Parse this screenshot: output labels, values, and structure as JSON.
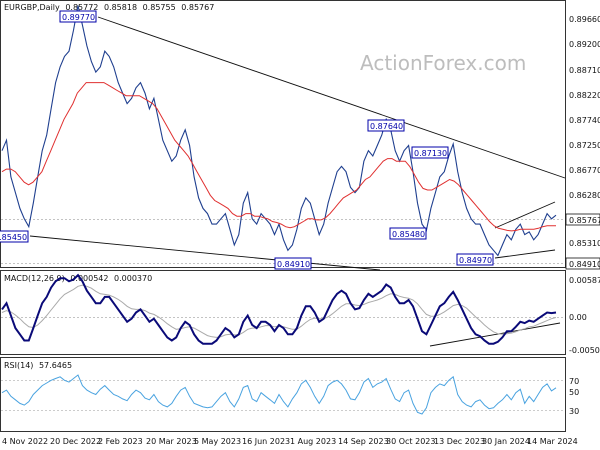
{
  "chart_data": [
    {
      "type": "line",
      "title": "EURGBP,Daily",
      "quote": [
        "0.85772",
        "0.85818",
        "0.85755",
        "0.85767"
      ],
      "watermark": "ActionForex.com",
      "y_range": [
        0.848,
        0.898
      ],
      "y_ticks": [
        "0.89660",
        "0.89200",
        "0.88710",
        "0.88220",
        "0.87740",
        "0.87250",
        "0.86770",
        "0.86280",
        "0.85767",
        "0.85310",
        "0.84910"
      ],
      "x_labels": [
        "4 Nov 2022",
        "20 Dec 2022",
        "2 Feb 2023",
        "20 Mar 2023",
        "5 May 2023",
        "16 Jun 2023",
        "1 Aug 2023",
        "14 Sep 2023",
        "30 Oct 2023",
        "13 Dec 2023",
        "30 Jan 2024",
        "14 Mar 2024"
      ],
      "price": [
        0.87,
        0.872,
        0.865,
        0.862,
        0.859,
        0.857,
        0.8555,
        0.86,
        0.865,
        0.87,
        0.873,
        0.878,
        0.883,
        0.886,
        0.888,
        0.889,
        0.893,
        0.8977,
        0.894,
        0.89,
        0.887,
        0.885,
        0.886,
        0.889,
        0.888,
        0.886,
        0.883,
        0.881,
        0.879,
        0.88,
        0.882,
        0.883,
        0.881,
        0.878,
        0.88,
        0.876,
        0.872,
        0.87,
        0.868,
        0.869,
        0.872,
        0.874,
        0.871,
        0.865,
        0.861,
        0.859,
        0.858,
        0.856,
        0.856,
        0.857,
        0.858,
        0.855,
        0.852,
        0.854,
        0.86,
        0.862,
        0.857,
        0.856,
        0.858,
        0.857,
        0.856,
        0.854,
        0.856,
        0.853,
        0.851,
        0.852,
        0.855,
        0.859,
        0.861,
        0.86,
        0.857,
        0.854,
        0.856,
        0.86,
        0.863,
        0.866,
        0.867,
        0.866,
        0.863,
        0.862,
        0.863,
        0.868,
        0.87,
        0.869,
        0.871,
        0.873,
        0.876,
        0.874,
        0.87,
        0.868,
        0.87,
        0.871,
        0.866,
        0.86,
        0.856,
        0.8548,
        0.859,
        0.862,
        0.865,
        0.866,
        0.869,
        0.8713,
        0.866,
        0.862,
        0.859,
        0.857,
        0.856,
        0.856,
        0.854,
        0.852,
        0.851,
        0.85,
        0.852,
        0.854,
        0.853,
        0.855,
        0.856,
        0.854,
        0.8545,
        0.853,
        0.854,
        0.856,
        0.858,
        0.857,
        0.8577
      ],
      "ma": [
        0.866,
        0.8665,
        0.8665,
        0.866,
        0.865,
        0.864,
        0.8635,
        0.864,
        0.865,
        0.866,
        0.868,
        0.87,
        0.872,
        0.874,
        0.876,
        0.8775,
        0.879,
        0.881,
        0.882,
        0.883,
        0.883,
        0.883,
        0.883,
        0.883,
        0.8825,
        0.882,
        0.8815,
        0.881,
        0.8805,
        0.8805,
        0.8805,
        0.8805,
        0.88,
        0.8795,
        0.879,
        0.878,
        0.8765,
        0.875,
        0.8735,
        0.872,
        0.871,
        0.87,
        0.869,
        0.8675,
        0.866,
        0.8645,
        0.863,
        0.8615,
        0.8605,
        0.86,
        0.8595,
        0.859,
        0.858,
        0.8575,
        0.8575,
        0.858,
        0.858,
        0.8575,
        0.8575,
        0.8572,
        0.857,
        0.8565,
        0.8563,
        0.856,
        0.8555,
        0.8553,
        0.8555,
        0.856,
        0.8565,
        0.857,
        0.857,
        0.8568,
        0.8568,
        0.8572,
        0.858,
        0.859,
        0.86,
        0.861,
        0.8615,
        0.862,
        0.8625,
        0.8635,
        0.8645,
        0.865,
        0.866,
        0.867,
        0.868,
        0.8685,
        0.8685,
        0.868,
        0.868,
        0.868,
        0.867,
        0.8655,
        0.864,
        0.8628,
        0.8625,
        0.8625,
        0.863,
        0.8635,
        0.864,
        0.8645,
        0.8642,
        0.8635,
        0.8625,
        0.8615,
        0.8605,
        0.8595,
        0.8585,
        0.8575,
        0.8565,
        0.8557,
        0.8552,
        0.855,
        0.8548,
        0.8547,
        0.8548,
        0.855,
        0.855,
        0.855,
        0.855,
        0.8552,
        0.8555,
        0.8557,
        0.8557,
        0.8557
      ]
    },
    {
      "type": "line",
      "title": "MACD(12,26,9)",
      "readout": [
        "0.000542",
        "0.000370"
      ],
      "y_ticks": [
        "0.00587",
        "0.00",
        "-0.005021"
      ],
      "y_range": [
        -0.006,
        0.007
      ],
      "macd": [
        0.001,
        0.002,
        0.0,
        -0.002,
        -0.003,
        -0.004,
        -0.004,
        -0.002,
        0.0,
        0.002,
        0.003,
        0.0045,
        0.0055,
        0.006,
        0.006,
        0.0055,
        0.0058,
        0.0065,
        0.0055,
        0.004,
        0.003,
        0.002,
        0.002,
        0.003,
        0.003,
        0.002,
        0.001,
        0.0,
        -0.001,
        -0.0005,
        0.0005,
        0.001,
        0.0,
        -0.001,
        -0.0005,
        -0.0015,
        -0.0025,
        -0.0035,
        -0.004,
        -0.0035,
        -0.002,
        -0.001,
        -0.0015,
        -0.003,
        -0.004,
        -0.0045,
        -0.0045,
        -0.0045,
        -0.004,
        -0.003,
        -0.002,
        -0.0025,
        -0.0035,
        -0.003,
        -0.001,
        0.0,
        -0.0015,
        -0.002,
        -0.001,
        -0.001,
        -0.0015,
        -0.0025,
        -0.0015,
        -0.002,
        -0.003,
        -0.003,
        -0.002,
        0.0,
        0.0015,
        0.0015,
        0.0005,
        -0.001,
        -0.0005,
        0.001,
        0.0025,
        0.0035,
        0.004,
        0.0035,
        0.002,
        0.001,
        0.0012,
        0.0025,
        0.0035,
        0.003,
        0.0035,
        0.004,
        0.005,
        0.0045,
        0.003,
        0.002,
        0.002,
        0.0025,
        0.0015,
        -0.0005,
        -0.0025,
        -0.003,
        -0.0015,
        0.0,
        0.0015,
        0.002,
        0.003,
        0.0038,
        0.0025,
        0.001,
        -0.0005,
        -0.002,
        -0.003,
        -0.0033,
        -0.004,
        -0.0045,
        -0.0045,
        -0.0042,
        -0.0035,
        -0.0025,
        -0.0025,
        -0.0018,
        -0.001,
        -0.0012,
        -0.0008,
        -0.001,
        -0.0005,
        0.0,
        0.0005,
        0.0004,
        0.0005
      ],
      "signal": [
        0.0005,
        0.0008,
        0.0006,
        0.0001,
        -0.0005,
        -0.0012,
        -0.0018,
        -0.0019,
        -0.0015,
        -0.0008,
        0.0,
        0.0009,
        0.0018,
        0.0027,
        0.0034,
        0.0038,
        0.0042,
        0.0047,
        0.0049,
        0.0047,
        0.0044,
        0.0039,
        0.0035,
        0.0034,
        0.0033,
        0.003,
        0.0026,
        0.0021,
        0.0015,
        0.0011,
        0.001,
        0.001,
        0.0008,
        0.0004,
        0.0002,
        -0.0002,
        -0.0007,
        -0.0013,
        -0.0018,
        -0.0022,
        -0.0021,
        -0.0019,
        -0.0018,
        -0.002,
        -0.0024,
        -0.0028,
        -0.0032,
        -0.0034,
        -0.0035,
        -0.0034,
        -0.0031,
        -0.003,
        -0.0031,
        -0.0031,
        -0.0027,
        -0.0022,
        -0.002,
        -0.002,
        -0.0018,
        -0.0016,
        -0.0016,
        -0.0018,
        -0.0017,
        -0.0018,
        -0.002,
        -0.0022,
        -0.0022,
        -0.0017,
        -0.0011,
        -0.0006,
        -0.0004,
        -0.0005,
        -0.0005,
        -0.0002,
        0.0003,
        0.0009,
        0.0015,
        0.0019,
        0.0019,
        0.0017,
        0.0016,
        0.0018,
        0.0021,
        0.0023,
        0.0025,
        0.0028,
        0.0032,
        0.0035,
        0.0034,
        0.0031,
        0.0029,
        0.0028,
        0.0025,
        0.0019,
        0.001,
        0.0002,
        -0.0001,
        -0.0001,
        0.0002,
        0.0006,
        0.0011,
        0.0016,
        0.0018,
        0.0016,
        0.0012,
        0.0005,
        -0.0002,
        -0.0008,
        -0.0015,
        -0.0021,
        -0.0026,
        -0.0029,
        -0.003,
        -0.0029,
        -0.0028,
        -0.0026,
        -0.0023,
        -0.0021,
        -0.0018,
        -0.0017,
        -0.0014,
        -0.0011,
        -0.0008,
        -0.0005,
        -0.0003
      ]
    },
    {
      "type": "line",
      "title": "RSI(14)",
      "readout": "57.6465",
      "y_ticks": [
        "70",
        "50",
        "30"
      ],
      "y_range": [
        10,
        90
      ],
      "rsi": [
        52,
        55,
        48,
        44,
        40,
        38,
        42,
        50,
        55,
        60,
        63,
        66,
        68,
        70,
        66,
        64,
        68,
        72,
        60,
        55,
        52,
        50,
        56,
        60,
        55,
        50,
        48,
        45,
        43,
        50,
        55,
        52,
        46,
        44,
        50,
        42,
        38,
        36,
        40,
        48,
        55,
        58,
        48,
        40,
        38,
        36,
        35,
        36,
        42,
        48,
        52,
        42,
        36,
        45,
        58,
        60,
        45,
        42,
        52,
        48,
        44,
        40,
        50,
        42,
        36,
        45,
        52,
        62,
        66,
        58,
        48,
        40,
        48,
        60,
        64,
        66,
        62,
        55,
        45,
        44,
        52,
        64,
        68,
        58,
        62,
        64,
        68,
        56,
        45,
        42,
        52,
        55,
        40,
        30,
        28,
        35,
        52,
        58,
        62,
        60,
        66,
        70,
        50,
        42,
        38,
        36,
        42,
        44,
        38,
        34,
        35,
        40,
        44,
        50,
        44,
        52,
        56,
        40,
        48,
        42,
        50,
        58,
        62,
        54,
        57.6
      ]
    },
    {
      "type": "annotations",
      "price_labels": [
        "0.89770",
        "0.87640",
        "0.87130",
        "0.85480",
        "0.84970",
        "0.84910",
        "0.85450"
      ],
      "time_axis": [
        "4 Nov 2022",
        "20 Dec 2022",
        "2 Feb 2023",
        "20 Mar 2023",
        "5 May 2023",
        "16 Jun 2023",
        "1 Aug 2023",
        "14 Sep 2023",
        "30 Oct 2023",
        "13 Dec 2023",
        "30 Jan 2024",
        "14 Mar 2024"
      ],
      "colors": {
        "price": "#1f3f8f",
        "ma": "#e03030",
        "macd": "#0a0a78",
        "signal": "#aaaaaa",
        "rsi": "#4aa3e0",
        "trend": "#111111",
        "label": "#0000aa"
      }
    }
  ]
}
